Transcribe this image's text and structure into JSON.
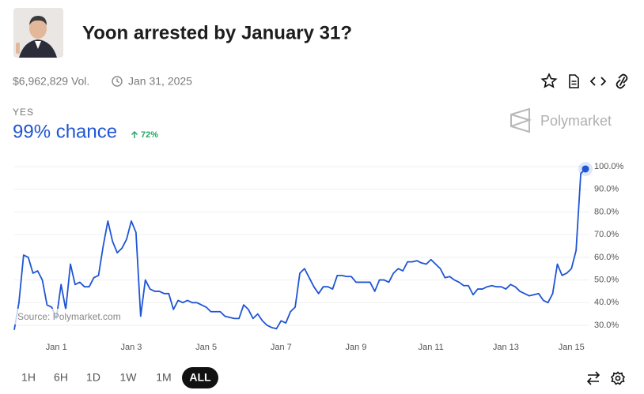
{
  "header": {
    "title": "Yoon arrested by January 31?",
    "volume": "$6,962,829 Vol.",
    "end_date": "Jan 31, 2025"
  },
  "outcome": {
    "label": "YES",
    "chance": "99% chance",
    "change": "72%"
  },
  "watermark": "Polymarket",
  "source": "Source: Polymarket.com",
  "time_ranges": [
    "1H",
    "6H",
    "1D",
    "1W",
    "1M",
    "ALL"
  ],
  "selected_range": "ALL",
  "chart_data": {
    "type": "line",
    "categories": [
      null,
      null,
      null,
      null,
      null,
      null,
      null,
      null,
      null,
      "Jan 1",
      null,
      null,
      null,
      null,
      null,
      null,
      null,
      null,
      null,
      null,
      null,
      null,
      null,
      null,
      null,
      "Jan 3",
      null,
      null,
      null,
      null,
      null,
      null,
      null,
      null,
      null,
      null,
      null,
      null,
      null,
      null,
      null,
      "Jan 5",
      null,
      null,
      null,
      null,
      null,
      null,
      null,
      null,
      null,
      null,
      null,
      null,
      null,
      null,
      null,
      "Jan 7",
      null,
      null,
      null,
      null,
      null,
      null,
      null,
      null,
      null,
      null,
      null,
      null,
      null,
      null,
      null,
      "Jan 9",
      null,
      null,
      null,
      null,
      null,
      null,
      null,
      null,
      null,
      null,
      null,
      null,
      null,
      null,
      null,
      "Jan 11",
      null,
      null,
      null,
      null,
      null,
      null,
      null,
      null,
      null,
      null,
      null,
      null,
      null,
      null,
      null,
      "Jan 13",
      null,
      null,
      null,
      null,
      null,
      null,
      null,
      null,
      null,
      null,
      null,
      null,
      null,
      "Jan 15",
      null,
      null,
      null
    ],
    "series": [
      {
        "name": "Yes",
        "color": "#1f55d4",
        "values": [
          28,
          40,
          61,
          60,
          53,
          54,
          50,
          39,
          38,
          33,
          48,
          37,
          57,
          48,
          49,
          47,
          47,
          51,
          52,
          65,
          76,
          67,
          62,
          64,
          68,
          76,
          71,
          34,
          50,
          46,
          45,
          45,
          44,
          44,
          37,
          41,
          40,
          41,
          40,
          40,
          39,
          38,
          36,
          36,
          36,
          34,
          33.5,
          33,
          33,
          39,
          37,
          33,
          35,
          32,
          30,
          29,
          28.5,
          32,
          31,
          36,
          38,
          53,
          55,
          51,
          47,
          44,
          47,
          47,
          46,
          52,
          52,
          51.5,
          51.5,
          49,
          49,
          49,
          49,
          45,
          50,
          50,
          49,
          53,
          55,
          54,
          58,
          58,
          58.5,
          57.5,
          57,
          59,
          57,
          55,
          51,
          51.5,
          50,
          49,
          47.5,
          47.5,
          43.5,
          46,
          46,
          47,
          47.5,
          47,
          47,
          46,
          48,
          47,
          45,
          44,
          43,
          43.5,
          44,
          41,
          40,
          44,
          57,
          52,
          53,
          55,
          63,
          97,
          99
        ]
      }
    ],
    "ylim": [
      27,
      101
    ],
    "yticks": [
      {
        "value": 30,
        "label": "30.0%"
      },
      {
        "value": 40,
        "label": "40.0%"
      },
      {
        "value": 50,
        "label": "50.0%"
      },
      {
        "value": 60,
        "label": "60.0%"
      },
      {
        "value": 70,
        "label": "70.0%"
      },
      {
        "value": 80,
        "label": "80.0%"
      },
      {
        "value": 90,
        "label": "90.0%"
      },
      {
        "value": 100,
        "label": "100.0%"
      }
    ],
    "grid": true
  }
}
